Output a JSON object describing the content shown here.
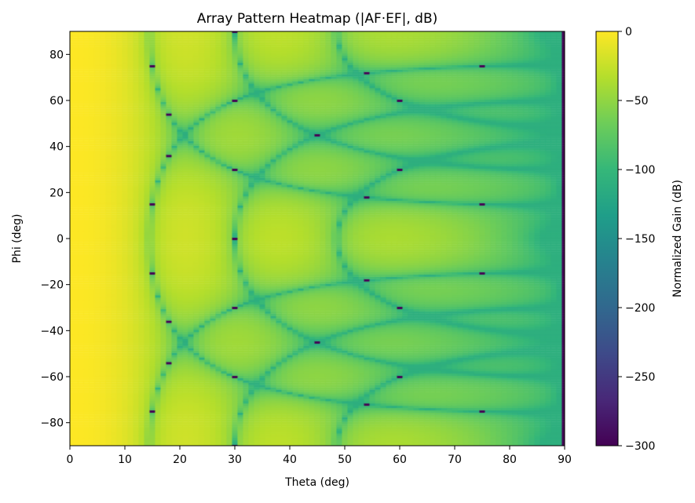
{
  "chart_data": {
    "type": "heatmap",
    "title": "Array Pattern Heatmap (|AF·EF|, dB)",
    "xlabel": "Theta (deg)",
    "ylabel": "Phi (deg)",
    "xlim": [
      0,
      90
    ],
    "ylim": [
      -90,
      90
    ],
    "x_grid": {
      "start": 0,
      "stop": 90,
      "step": 1
    },
    "y_grid": {
      "start": -90,
      "stop": 90,
      "step": 1
    },
    "xticks": [
      0,
      10,
      20,
      30,
      40,
      50,
      60,
      70,
      80,
      90
    ],
    "yticks": [
      -80,
      -60,
      -40,
      -20,
      0,
      20,
      40,
      60,
      80
    ],
    "colorbar": {
      "label": "Normalized Gain (dB)",
      "range": [
        -300,
        0
      ],
      "ticks": [
        0,
        -50,
        -100,
        -150,
        -200,
        -250,
        -300
      ],
      "tick_labels": [
        "0",
        "−50",
        "−100",
        "−150",
        "−200",
        "−250",
        "−300"
      ],
      "colormap": "viridis"
    },
    "grid": false
  }
}
